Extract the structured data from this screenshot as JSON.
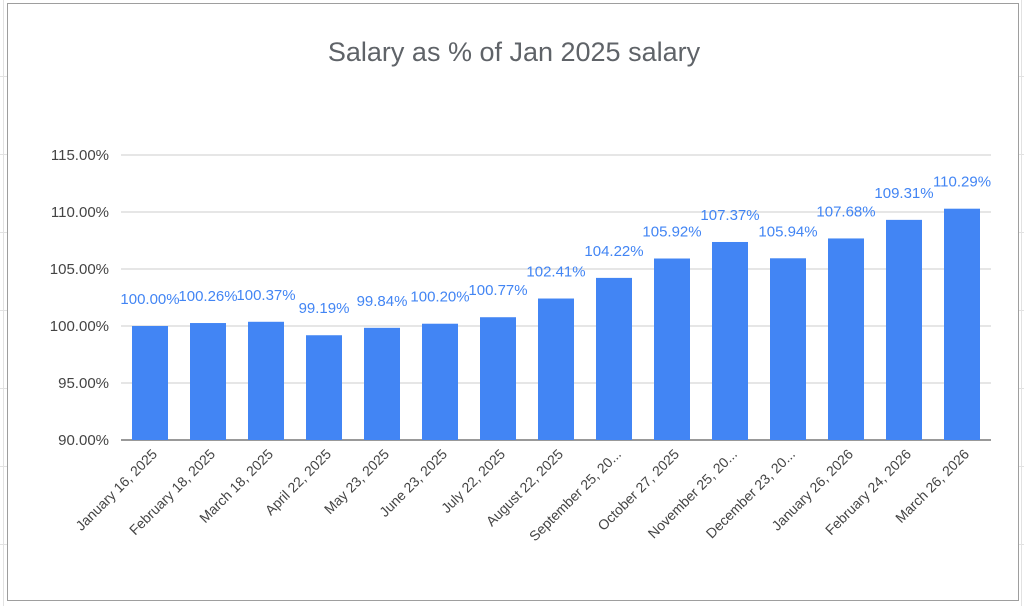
{
  "chart_data": {
    "type": "bar",
    "title": "Salary as % of Jan 2025 salary",
    "xlabel": "",
    "ylabel": "",
    "ylim": [
      90,
      115
    ],
    "yticks": [
      90,
      95,
      100,
      105,
      110,
      115
    ],
    "ytick_labels": [
      "90.00%",
      "95.00%",
      "100.00%",
      "105.00%",
      "110.00%",
      "115.00%"
    ],
    "grid": true,
    "legend": "none",
    "bar_color": "#4285f4",
    "label_color": "#4285f4",
    "categories": [
      "January 16, 2025",
      "February 18, 2025",
      "March 18, 2025",
      "April 22, 2025",
      "May 23, 2025",
      "June 23, 2025",
      "July 22, 2025",
      "August 22, 2025",
      "September 25, 20...",
      "October 27, 2025",
      "November 25, 20...",
      "December 23, 20...",
      "January 26, 2026",
      "February 24, 2026",
      "March 26, 2026"
    ],
    "values": [
      100.0,
      100.26,
      100.37,
      99.19,
      99.84,
      100.2,
      100.77,
      102.41,
      104.22,
      105.92,
      107.37,
      105.94,
      107.68,
      109.31,
      110.29
    ],
    "data_labels": [
      "100.00%",
      "100.26%",
      "100.37%",
      "99.19%",
      "99.84%",
      "100.20%",
      "100.77%",
      "102.41%",
      "104.22%",
      "105.92%",
      "107.37%",
      "105.94%",
      "107.68%",
      "109.31%",
      "110.29%"
    ]
  }
}
